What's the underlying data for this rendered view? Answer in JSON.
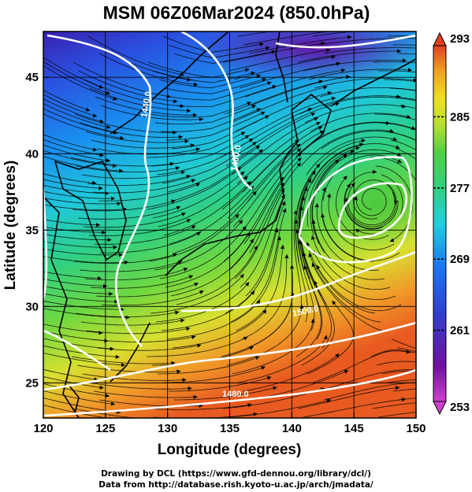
{
  "title": "MSM 06Z06Mar2024 (850.0hPa)",
  "x_axis_label": "Longitude (degrees)",
  "y_axis_label": "Latitude  (degrees)",
  "x_ticks": [
    "120",
    "125",
    "130",
    "135",
    "140",
    "145",
    "150"
  ],
  "y_ticks": [
    "25",
    "30",
    "35",
    "40",
    "45"
  ],
  "colorbar": {
    "min": 253,
    "max": 293,
    "tick_labels": [
      "293",
      "285",
      "277",
      "269",
      "261",
      "253"
    ],
    "colors": [
      "#d040d0",
      "#7010a0",
      "#3040d0",
      "#1a78f0",
      "#20d0e0",
      "#30d080",
      "#50d040",
      "#b8e030",
      "#f0e020",
      "#f0a020",
      "#e04020"
    ]
  },
  "contour_labels": [
    "1440.0",
    "1400.0",
    "1480.0",
    "1500.0"
  ],
  "contour_color": "#ffffff",
  "credits": {
    "line1": "Drawing by DCL (https://www.gfd-dennou.org/library/dcl/)",
    "line2": "Data from http://database.rish.kyoto-u.ac.jp/arch/jmadata/"
  }
}
